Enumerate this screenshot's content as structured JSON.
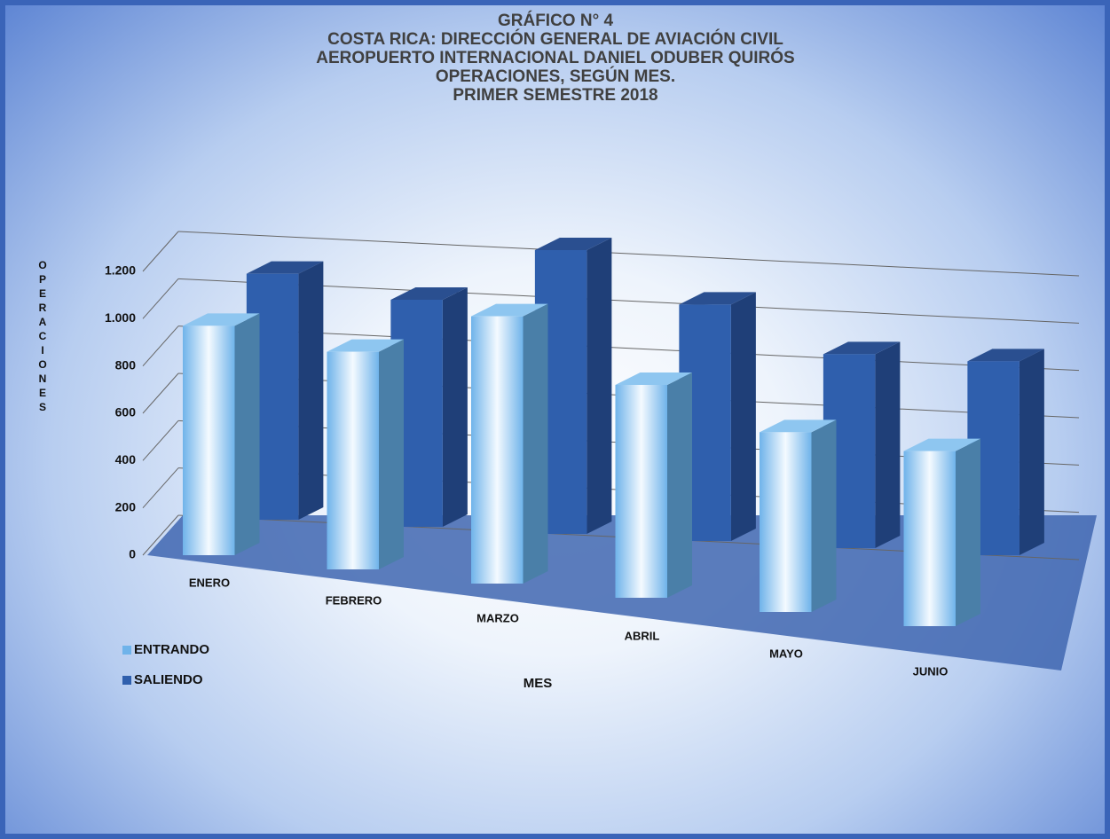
{
  "chart_data": {
    "type": "bar3d",
    "title": [
      "GRÁFICO N° 4",
      "COSTA RICA: DIRECCIÓN GENERAL DE AVIACIÓN CIVIL",
      "AEROPUERTO INTERNACIONAL DANIEL ODUBER QUIRÓS",
      "OPERACIONES, SEGÚN MES.",
      "PRIMER SEMESTRE 2018"
    ],
    "x_label": "MES",
    "y_label": "OPERACIONES",
    "categories": [
      "ENERO",
      "FEBRERO",
      "MARZO",
      "ABRIL",
      "MAYO",
      "JUNIO"
    ],
    "series": [
      {
        "name": "ENTRANDO",
        "color": "#6fb3ea",
        "values": [
          970,
          920,
          1130,
          900,
          760,
          740
        ]
      },
      {
        "name": "SALIENDO",
        "color": "#2f5fad",
        "values": [
          1040,
          960,
          1200,
          1000,
          820,
          820
        ]
      }
    ],
    "ylim": [
      0,
      1200
    ],
    "yticks": [
      0,
      200,
      400,
      600,
      800,
      {
        "value": 1000,
        "label": "1.000"
      },
      {
        "value": 1200,
        "label": "1.200"
      }
    ],
    "grid": true
  }
}
